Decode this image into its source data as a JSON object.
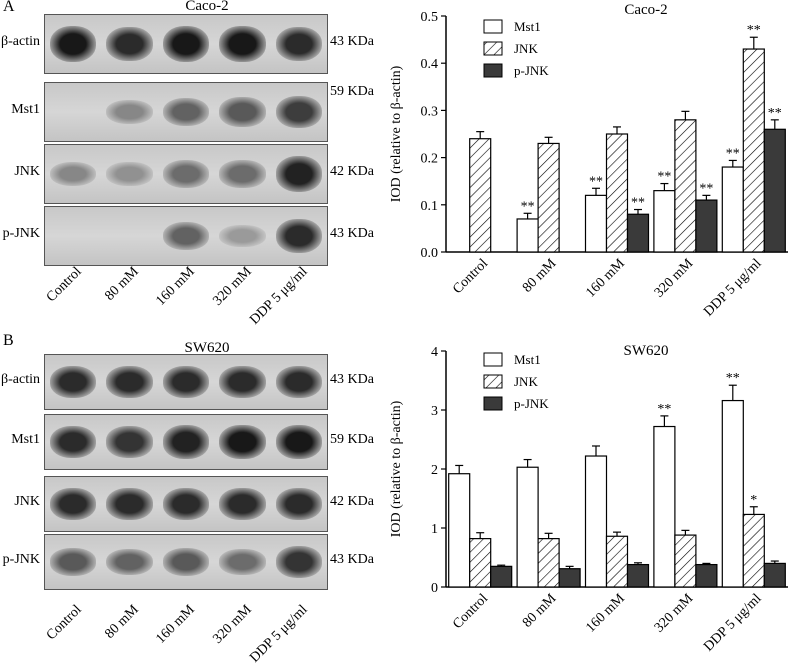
{
  "panels": [
    {
      "letter": "A",
      "cell_line": "Caco-2",
      "blots": [
        {
          "label": "β-actin",
          "kda": "43 KDa",
          "intensity": [
            0.95,
            0.85,
            0.95,
            0.95,
            0.85
          ]
        },
        {
          "label": "Mst1",
          "kda": "59 KDa",
          "intensity": [
            0.0,
            0.35,
            0.55,
            0.6,
            0.75
          ]
        },
        {
          "label": "JNK",
          "kda": "42 KDa",
          "intensity": [
            0.35,
            0.3,
            0.5,
            0.5,
            0.9
          ]
        },
        {
          "label": "p-JNK",
          "kda": "43 KDa",
          "intensity": [
            0.0,
            0.0,
            0.55,
            0.25,
            0.85
          ]
        }
      ],
      "lanes": [
        "Control",
        "80 mM",
        "160 mM",
        "320 mM",
        "DDP 5 μg/ml"
      ]
    },
    {
      "letter": "B",
      "cell_line": "SW620",
      "blots": [
        {
          "label": "β-actin",
          "kda": "43 KDa",
          "intensity": [
            0.85,
            0.85,
            0.85,
            0.85,
            0.85
          ]
        },
        {
          "label": "Mst1",
          "kda": "59 KDa",
          "intensity": [
            0.85,
            0.8,
            0.9,
            0.95,
            0.95
          ]
        },
        {
          "label": "JNK",
          "kda": "42 KDa",
          "intensity": [
            0.85,
            0.85,
            0.85,
            0.85,
            0.85
          ]
        },
        {
          "label": "p-JNK",
          "kda": "43 KDa",
          "intensity": [
            0.6,
            0.55,
            0.6,
            0.5,
            0.8
          ]
        }
      ],
      "lanes": [
        "Control",
        "80 mM",
        "160 mM",
        "320 mM",
        "DDP 5 μg/ml"
      ]
    }
  ],
  "chart_data": [
    {
      "type": "bar",
      "title": "Caco-2",
      "ylabel": "IOD (relative to β-actin)",
      "ylim": [
        0,
        0.5
      ],
      "yticks": [
        "0.0",
        "0.1",
        "0.2",
        "0.3",
        "0.4",
        "0.5"
      ],
      "categories": [
        "Control",
        "80 mM",
        "160 mM",
        "320 mM",
        "DDP 5 μg/ml"
      ],
      "legend_position": "top-left",
      "series": [
        {
          "name": "Mst1",
          "pattern": "white",
          "values": [
            0,
            0.07,
            0.12,
            0.13,
            0.18
          ],
          "errors": [
            0,
            0.012,
            0.015,
            0.015,
            0.014
          ],
          "sig": [
            "",
            "**",
            "**",
            "**",
            "**"
          ]
        },
        {
          "name": "JNK",
          "pattern": "hatch",
          "values": [
            0.24,
            0.23,
            0.25,
            0.28,
            0.43
          ],
          "errors": [
            0.015,
            0.013,
            0.015,
            0.018,
            0.025
          ],
          "sig": [
            "",
            "",
            "",
            "",
            "**"
          ]
        },
        {
          "name": "p-JNK",
          "pattern": "dark",
          "values": [
            0,
            0,
            0.08,
            0.11,
            0.26
          ],
          "errors": [
            0,
            0,
            0.01,
            0.01,
            0.02
          ],
          "sig": [
            "",
            "",
            "**",
            "**",
            "**"
          ]
        }
      ]
    },
    {
      "type": "bar",
      "title": "SW620",
      "ylabel": "IOD (relative to β-actin)",
      "ylim": [
        0,
        4
      ],
      "yticks": [
        "0",
        "1",
        "2",
        "3",
        "4"
      ],
      "categories": [
        "Control",
        "80 mM",
        "160 mM",
        "320 mM",
        "DDP 5 μg/ml"
      ],
      "legend_position": "top-left",
      "series": [
        {
          "name": "Mst1",
          "pattern": "white",
          "values": [
            1.92,
            2.03,
            2.22,
            2.72,
            3.16
          ],
          "errors": [
            0.14,
            0.13,
            0.17,
            0.18,
            0.26
          ],
          "sig": [
            "",
            "",
            "",
            "**",
            "**"
          ]
        },
        {
          "name": "JNK",
          "pattern": "hatch",
          "values": [
            0.82,
            0.82,
            0.86,
            0.88,
            1.23
          ],
          "errors": [
            0.1,
            0.09,
            0.07,
            0.08,
            0.13
          ],
          "sig": [
            "",
            "",
            "",
            "",
            "*"
          ]
        },
        {
          "name": "p-JNK",
          "pattern": "dark",
          "values": [
            0.35,
            0.31,
            0.38,
            0.38,
            0.4
          ],
          "errors": [
            0.02,
            0.04,
            0.03,
            0.02,
            0.04
          ],
          "sig": [
            "",
            "",
            "",
            "",
            ""
          ]
        }
      ]
    }
  ],
  "colors": {
    "white_bar": "#ffffff",
    "dark_bar": "#3a3a3a",
    "axis": "#000000"
  }
}
